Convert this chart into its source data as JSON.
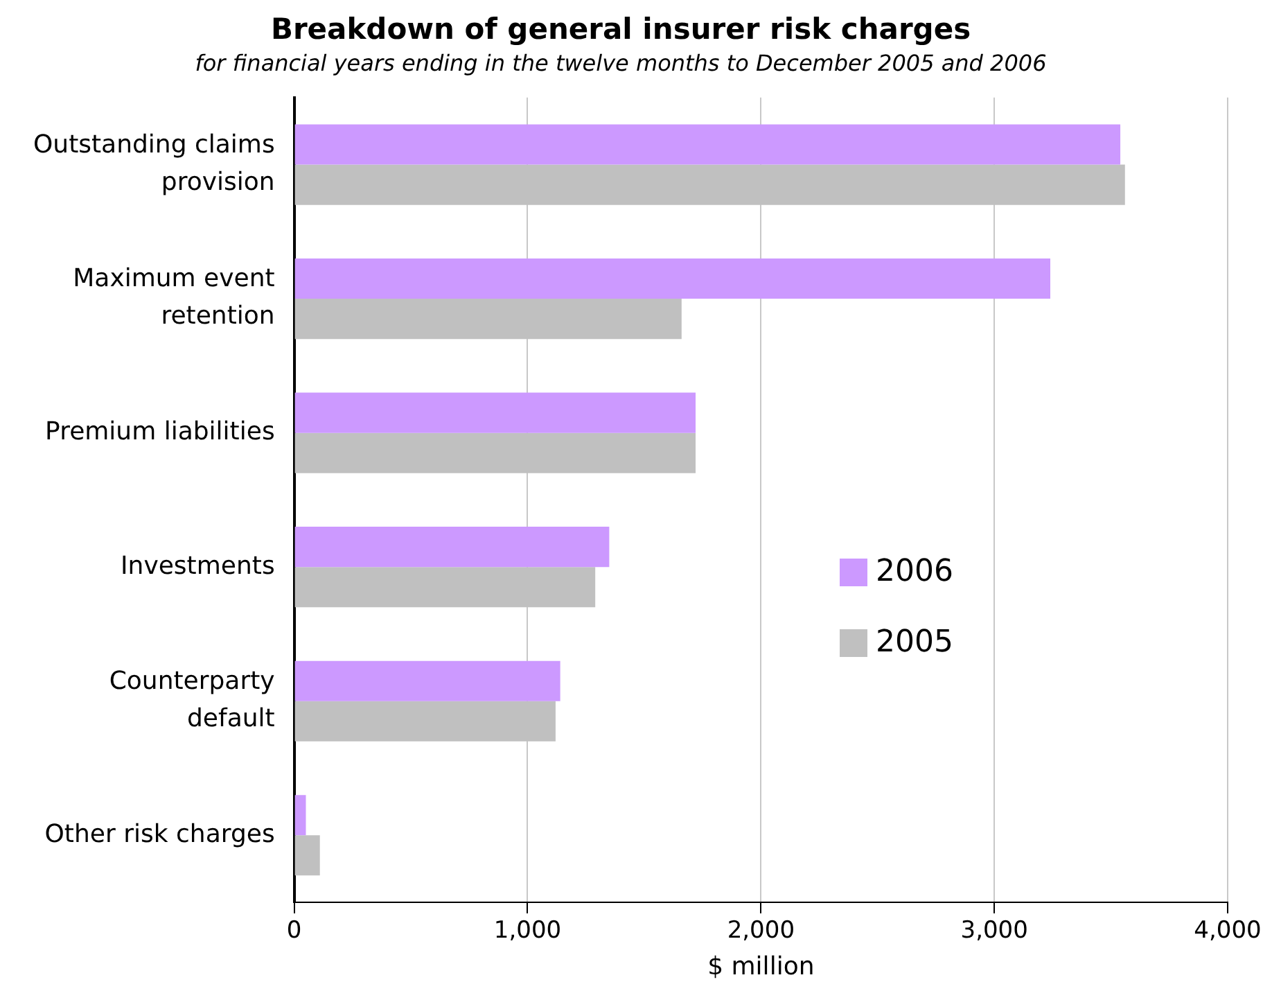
{
  "chart_data": {
    "type": "bar",
    "orientation": "horizontal",
    "title": "Breakdown of general insurer risk charges",
    "subtitle": "for financial years ending in the twelve months to December 2005 and 2006",
    "xlabel": "$ million",
    "categories": [
      "Outstanding claims provision",
      "Maximum event retention",
      "Premium liabilities",
      "Investments",
      "Counterparty default",
      "Other risk charges"
    ],
    "series": [
      {
        "name": "2006",
        "color": "#cc99ff",
        "values": [
          3540,
          3240,
          1720,
          1350,
          1140,
          50
        ]
      },
      {
        "name": "2005",
        "color": "#c0c0c0",
        "values": [
          3560,
          1660,
          1720,
          1290,
          1120,
          110
        ]
      }
    ],
    "xlim": [
      0,
      4000
    ],
    "xticks": [
      {
        "value": 0,
        "label": "0"
      },
      {
        "value": 1000,
        "label": "1,000"
      },
      {
        "value": 2000,
        "label": "2,000"
      },
      {
        "value": 3000,
        "label": "3,000"
      },
      {
        "value": 4000,
        "label": "4,000"
      }
    ],
    "grid": "x",
    "legend": "right"
  }
}
